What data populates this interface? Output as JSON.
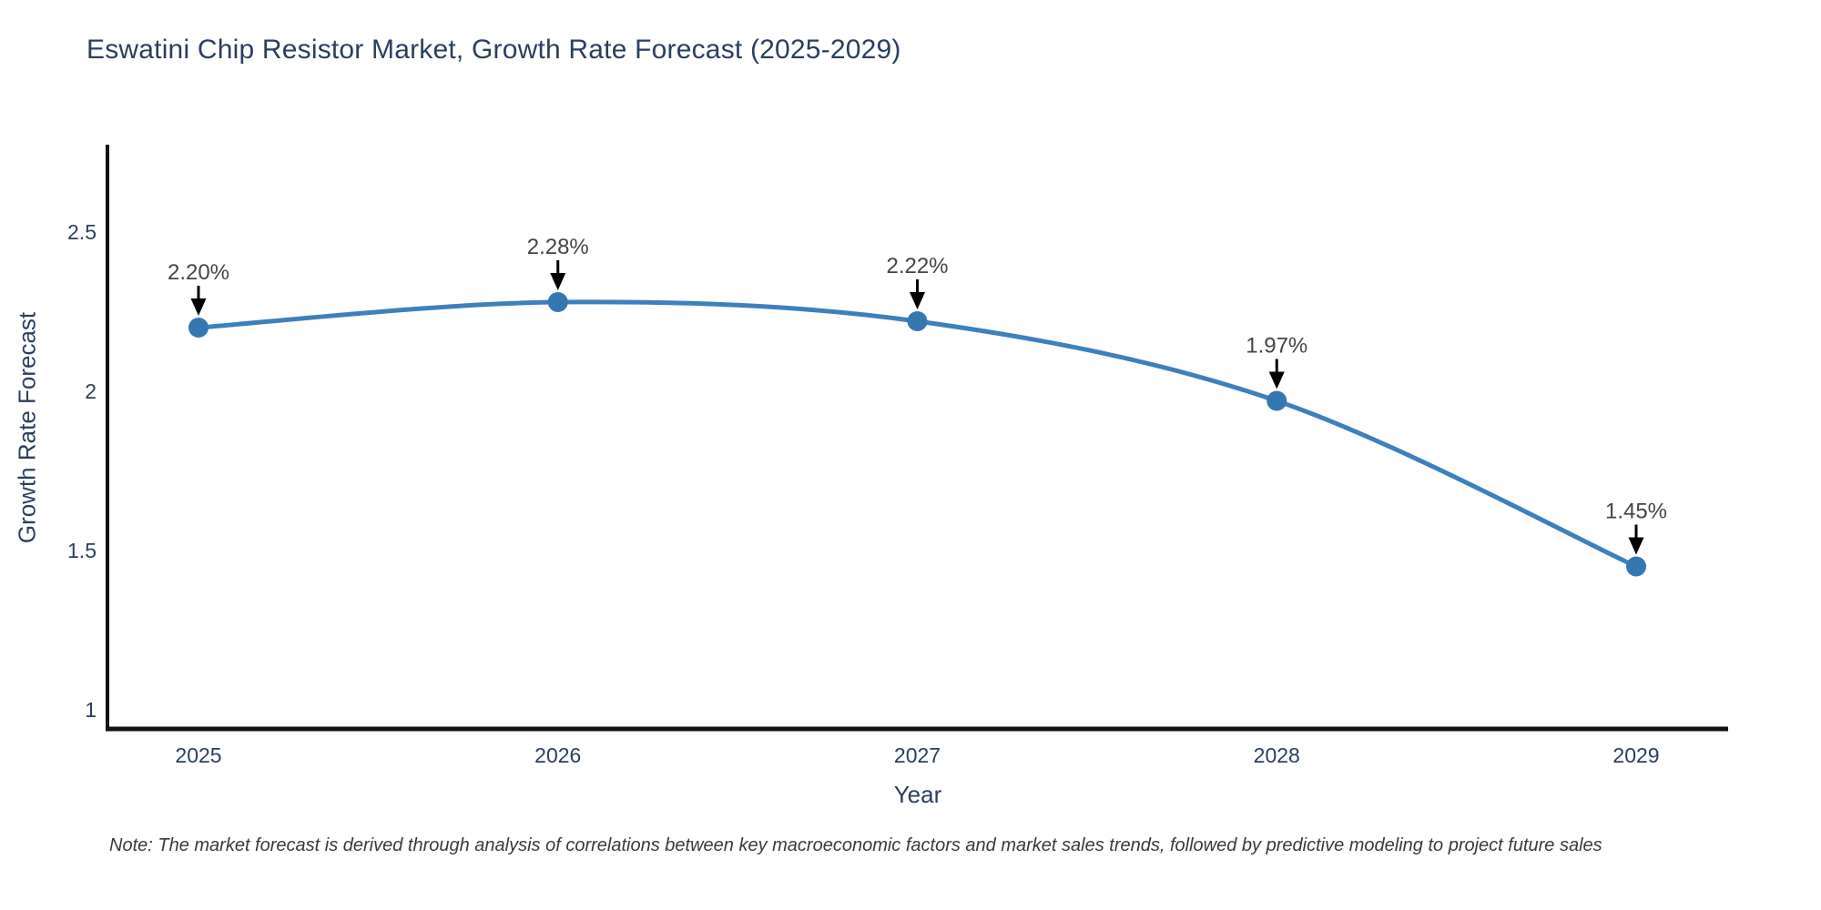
{
  "title": "Eswatini Chip Resistor Market, Growth Rate Forecast (2025-2029)",
  "note": "Note: The market forecast is derived through analysis of correlations between key macroeconomic factors and market sales trends, followed by predictive modeling to project future sales",
  "chart_data": {
    "type": "line",
    "title": "Eswatini Chip Resistor Market, Growth Rate Forecast (2025-2029)",
    "xlabel": "Year",
    "ylabel": "Growth Rate Forecast",
    "x": [
      2025,
      2026,
      2027,
      2028,
      2029
    ],
    "values": [
      2.2,
      2.28,
      2.22,
      1.97,
      1.45
    ],
    "labels": [
      "2.20%",
      "2.28%",
      "2.22%",
      "1.97%",
      "1.45%"
    ],
    "xtick_labels": [
      "2025",
      "2026",
      "2027",
      "2028",
      "2029"
    ],
    "yticks": [
      1,
      1.5,
      2,
      2.5
    ],
    "ytick_labels": [
      "1",
      "1.5",
      "2",
      "2.5"
    ],
    "ylim": [
      0.94,
      2.78
    ],
    "xlim": [
      2024.75,
      2029.26
    ],
    "line_shape": "spline",
    "grid": false,
    "legend": "none",
    "annotations_have_arrows": true,
    "colors": {
      "line": "#3d80bd",
      "marker": "#3577b1",
      "axis": "#111111",
      "tick_text": "#2a3f5f",
      "annotation_text": "#444444",
      "arrow": "#000000"
    }
  }
}
